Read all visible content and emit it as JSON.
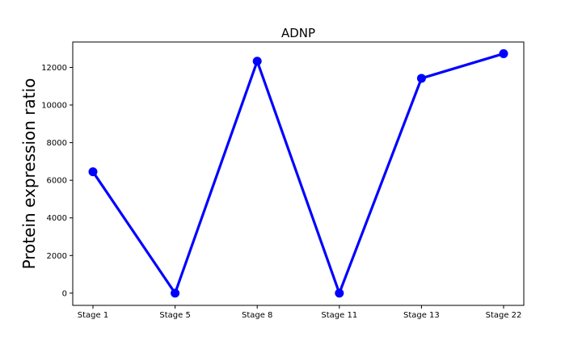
{
  "chart_data": {
    "type": "line",
    "title": "ADNP",
    "xlabel": "",
    "ylabel": "Protein expression ratio",
    "categories": [
      "Stage 1",
      "Stage 5",
      "Stage 8",
      "Stage 11",
      "Stage 13",
      "Stage 22"
    ],
    "series": [
      {
        "values": [
          6450,
          0,
          12330,
          0,
          11420,
          12730
        ],
        "color": "#0000ff"
      }
    ],
    "ylim": [
      -650,
      13350
    ],
    "yticks": [
      0,
      2000,
      4000,
      6000,
      8000,
      10000,
      12000
    ],
    "grid": false,
    "legend": "none"
  }
}
